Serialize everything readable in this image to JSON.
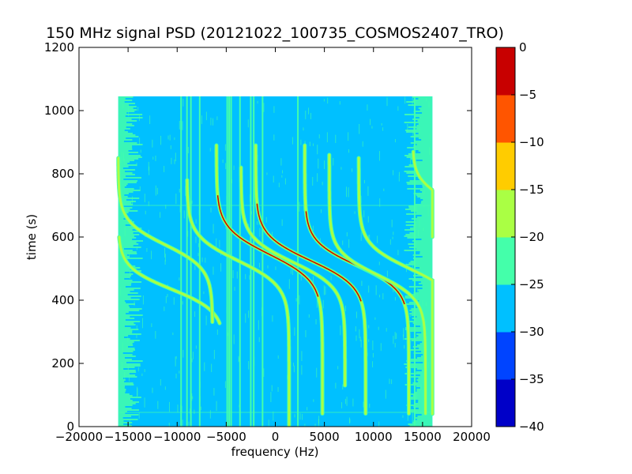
{
  "chart_data": {
    "type": "heatmap",
    "title": "150 MHz signal PSD (20121022_100735_COSMOS2407_TRO)",
    "xlabel": "frequency (Hz)",
    "ylabel": "time (s)",
    "xlim": [
      -20000,
      20000
    ],
    "ylim": [
      0,
      1200
    ],
    "xticks": [
      -20000,
      -15000,
      -10000,
      -5000,
      0,
      5000,
      10000,
      15000,
      20000
    ],
    "xtick_labels": [
      "−20000",
      "−15000",
      "−10000",
      "−5000",
      "0",
      "5000",
      "10000",
      "15000",
      "20000"
    ],
    "yticks": [
      0,
      200,
      400,
      600,
      800,
      1000,
      1200
    ],
    "ytick_labels": [
      "0",
      "200",
      "400",
      "600",
      "800",
      "1000",
      "1200"
    ],
    "data_extent": {
      "x": [
        -16000,
        16000
      ],
      "y": [
        0,
        1045
      ]
    },
    "grid": false,
    "colormap": "jet",
    "colorbar": {
      "levels": [
        -40,
        -35,
        -30,
        -25,
        -20,
        -15,
        -10,
        -5,
        0
      ],
      "level_labels": [
        "−40",
        "−35",
        "−30",
        "−25",
        "−20",
        "−15",
        "−10",
        "−5",
        "0"
      ],
      "colors": [
        "#0000c8",
        "#0044ff",
        "#00c0ff",
        "#44ffaa",
        "#aaff44",
        "#ffcc00",
        "#ff5500",
        "#c80000"
      ]
    },
    "background_level_range": [
      -30,
      -25
    ],
    "edge_noise_level_range": [
      -25,
      -20
    ],
    "vertical_lines_hz": [
      -9600,
      -9000,
      -8600,
      -7700,
      -4900,
      -4700,
      -4500,
      -3600,
      -2500,
      -2200,
      -1300,
      2300,
      14200
    ],
    "doppler_tracks": [
      {
        "x0": -16000,
        "y0": 600,
        "amplitude": 5400,
        "t0": 435,
        "tau": 70,
        "x_end": -11500,
        "y_end": 325,
        "intensity": "medium"
      },
      {
        "x0": -16000,
        "y0": 850,
        "amplitude": 4800,
        "t0": 575,
        "tau": 75,
        "x_end": -10500,
        "y_end": 330,
        "intensity": "medium"
      },
      {
        "x0": -9000,
        "y0": 780,
        "amplitude": 5200,
        "t0": 525,
        "tau": 80,
        "x_end": -3000,
        "y_end": 0,
        "intensity": "medium"
      },
      {
        "x0": -6000,
        "y0": 890,
        "amplitude": 5400,
        "t0": 545,
        "tau": 85,
        "x_end": 900,
        "y_end": 40,
        "intensity": "high"
      },
      {
        "x0": -3500,
        "y0": 820,
        "amplitude": 5300,
        "t0": 520,
        "tau": 80,
        "x_end": 2800,
        "y_end": 130,
        "intensity": "medium"
      },
      {
        "x0": -2000,
        "y0": 890,
        "amplitude": 5600,
        "t0": 525,
        "tau": 82,
        "x_end": 5200,
        "y_end": 40,
        "intensity": "high"
      },
      {
        "x0": 3000,
        "y0": 890,
        "amplitude": 5300,
        "t0": 510,
        "tau": 78,
        "x_end": 9000,
        "y_end": 40,
        "intensity": "high"
      },
      {
        "x0": 5500,
        "y0": 860,
        "amplitude": 4900,
        "t0": 480,
        "tau": 76,
        "x_end": 11000,
        "y_end": 40,
        "intensity": "medium"
      },
      {
        "x0": 8500,
        "y0": 850,
        "amplitude": 5200,
        "t0": 500,
        "tau": 78,
        "x_end": 14000,
        "y_end": 40,
        "intensity": "medium"
      },
      {
        "x0": 14000,
        "y0": 870,
        "amplitude": 2600,
        "t0": 735,
        "tau": 60,
        "x_end": 16000,
        "y_end": 600,
        "intensity": "medium"
      }
    ]
  }
}
